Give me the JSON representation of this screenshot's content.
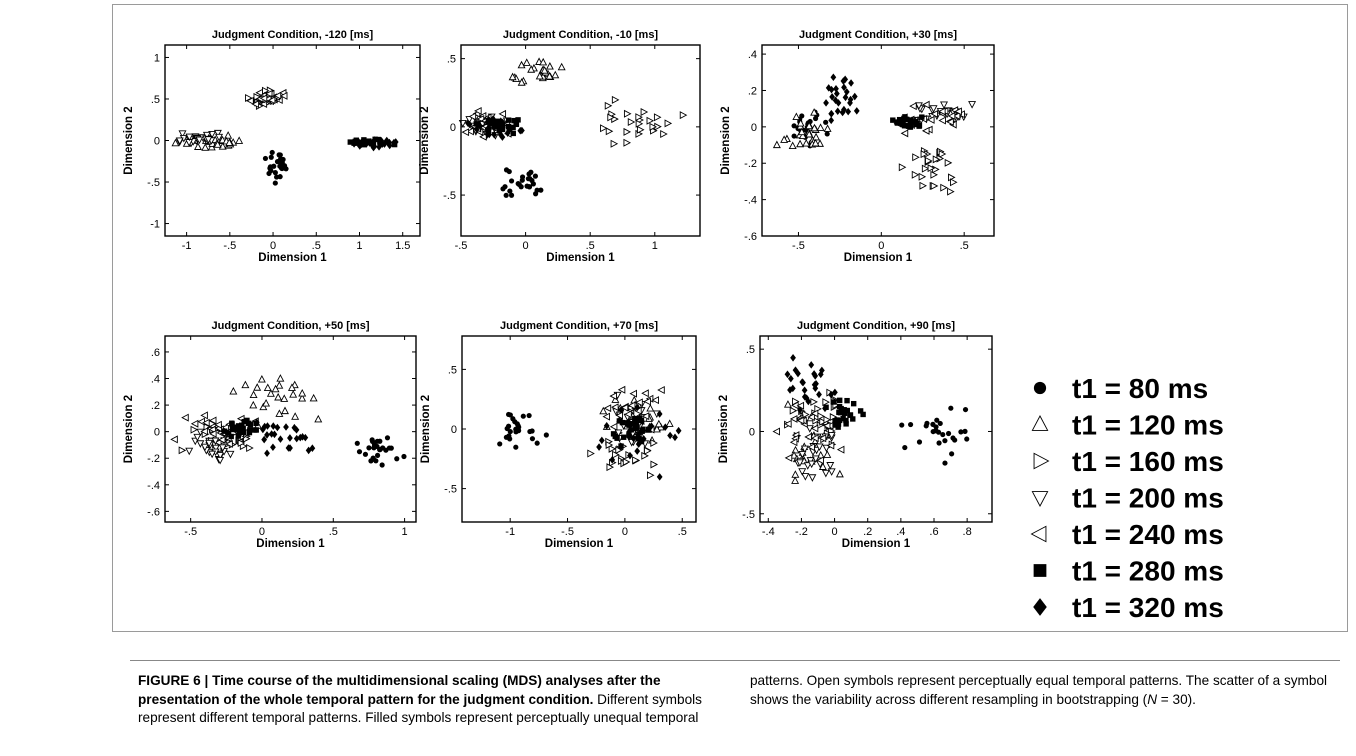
{
  "figure_label": "FIGURE 6",
  "caption": {
    "label": "FIGURE 6",
    "separator": " | ",
    "title": "Time course of the multidimensional scaling (MDS) analyses after the presentation of the whole temporal pattern for the judgment condition.",
    "body_1": " Different symbols represent different temporal patterns. Filled symbols represent perceptually unequal temporal patterns. Open symbols represent perceptually equal temporal patterns. The scatter of a symbol shows the variability across different resampling in bootstrapping (",
    "n_label": "N",
    "body_2": " = 30)."
  },
  "legend": {
    "entries": [
      {
        "marker": "filled-circle",
        "label": "t1 = 80 ms"
      },
      {
        "marker": "open-triangle-up",
        "label": "t1 = 120 ms"
      },
      {
        "marker": "open-triangle-right",
        "label": "t1 = 160 ms"
      },
      {
        "marker": "open-triangle-down",
        "label": "t1 = 200 ms"
      },
      {
        "marker": "open-triangle-left",
        "label": "t1 = 240 ms"
      },
      {
        "marker": "filled-square",
        "label": "t1 = 280 ms"
      },
      {
        "marker": "filled-diamond",
        "label": "t1 = 320 ms"
      }
    ]
  },
  "chart_data": [
    {
      "type": "scatter",
      "title": "Judgment Condition, -120 [ms]",
      "xlabel": "Dimension 1",
      "ylabel": "Dimension 2",
      "xlim": [
        -1.25,
        1.7
      ],
      "ylim": [
        -1.15,
        1.15
      ],
      "xticks": [
        -1,
        -0.5,
        0,
        0.5,
        1,
        1.5
      ],
      "yticks": [
        -1,
        -0.5,
        0,
        0.5,
        1
      ],
      "series": [
        {
          "marker": "filled-circle",
          "center": [
            0.05,
            -0.3
          ],
          "spread": [
            0.12,
            0.13
          ]
        },
        {
          "marker": "open-triangle-up",
          "center": [
            -0.72,
            -0.02
          ],
          "spread": [
            0.22,
            0.05
          ]
        },
        {
          "marker": "open-triangle-right",
          "center": [
            -0.1,
            0.5
          ],
          "spread": [
            0.1,
            0.06
          ]
        },
        {
          "marker": "open-triangle-down",
          "center": [
            -0.85,
            0.02
          ],
          "spread": [
            0.2,
            0.05
          ]
        },
        {
          "marker": "open-triangle-left",
          "center": [
            -0.05,
            0.5
          ],
          "spread": [
            0.15,
            0.06
          ]
        },
        {
          "marker": "filled-square",
          "center": [
            1.1,
            -0.02
          ],
          "spread": [
            0.15,
            0.03
          ]
        },
        {
          "marker": "filled-diamond",
          "center": [
            1.2,
            -0.03
          ],
          "spread": [
            0.22,
            0.03
          ]
        }
      ]
    },
    {
      "type": "scatter",
      "title": "Judgment Condition, -10 [ms]",
      "xlabel": "Dimension 1",
      "ylabel": "Dimension 2",
      "xlim": [
        -0.5,
        1.35
      ],
      "ylim": [
        -0.8,
        0.6
      ],
      "xticks": [
        -0.5,
        0,
        0.5,
        1
      ],
      "yticks": [
        -0.5,
        0,
        0.5
      ],
      "series": [
        {
          "marker": "filled-circle",
          "center": [
            0.0,
            -0.42
          ],
          "spread": [
            0.15,
            0.07
          ]
        },
        {
          "marker": "open-triangle-up",
          "center": [
            0.05,
            0.4
          ],
          "spread": [
            0.15,
            0.06
          ]
        },
        {
          "marker": "open-triangle-right",
          "center": [
            0.85,
            0.02
          ],
          "spread": [
            0.2,
            0.12
          ]
        },
        {
          "marker": "open-triangle-down",
          "center": [
            -0.3,
            0.0
          ],
          "spread": [
            0.12,
            0.06
          ]
        },
        {
          "marker": "open-triangle-left",
          "center": [
            -0.3,
            0.02
          ],
          "spread": [
            0.12,
            0.06
          ]
        },
        {
          "marker": "filled-square",
          "center": [
            -0.2,
            0.01
          ],
          "spread": [
            0.12,
            0.04
          ]
        },
        {
          "marker": "filled-diamond",
          "center": [
            -0.25,
            0.0
          ],
          "spread": [
            0.15,
            0.05
          ]
        }
      ]
    },
    {
      "type": "scatter",
      "title": "Judgment Condition, +30 [ms]",
      "xlabel": "Dimension 1",
      "ylabel": "Dimension 2",
      "xlim": [
        -0.72,
        0.68
      ],
      "ylim": [
        -0.6,
        0.45
      ],
      "xticks": [
        -0.5,
        0,
        0.5
      ],
      "yticks": [
        -0.6,
        -0.4,
        -0.2,
        0,
        0.2,
        0.4
      ],
      "series": [
        {
          "marker": "filled-circle",
          "center": [
            -0.45,
            0.0
          ],
          "spread": [
            0.08,
            0.07
          ]
        },
        {
          "marker": "open-triangle-up",
          "center": [
            -0.45,
            -0.05
          ],
          "spread": [
            0.1,
            0.08
          ]
        },
        {
          "marker": "open-triangle-right",
          "center": [
            0.3,
            -0.25
          ],
          "spread": [
            0.12,
            0.08
          ]
        },
        {
          "marker": "open-triangle-down",
          "center": [
            0.35,
            0.08
          ],
          "spread": [
            0.15,
            0.04
          ]
        },
        {
          "marker": "open-triangle-left",
          "center": [
            0.3,
            0.05
          ],
          "spread": [
            0.15,
            0.05
          ]
        },
        {
          "marker": "filled-square",
          "center": [
            0.15,
            0.03
          ],
          "spread": [
            0.06,
            0.03
          ]
        },
        {
          "marker": "filled-diamond",
          "center": [
            -0.25,
            0.15
          ],
          "spread": [
            0.07,
            0.1
          ]
        }
      ]
    },
    {
      "type": "scatter",
      "title": "Judgment Condition, +50 [ms]",
      "xlabel": "Dimension 1",
      "ylabel": "Dimension 2",
      "xlim": [
        -0.68,
        1.08
      ],
      "ylim": [
        -0.68,
        0.72
      ],
      "xticks": [
        -0.5,
        0,
        0.5,
        1
      ],
      "yticks": [
        -0.6,
        -0.4,
        -0.2,
        0,
        0.2,
        0.4,
        0.6
      ],
      "series": [
        {
          "marker": "filled-circle",
          "center": [
            0.8,
            -0.15
          ],
          "spread": [
            0.12,
            0.07
          ]
        },
        {
          "marker": "open-triangle-up",
          "center": [
            0.1,
            0.25
          ],
          "spread": [
            0.25,
            0.12
          ]
        },
        {
          "marker": "open-triangle-right",
          "center": [
            -0.3,
            -0.05
          ],
          "spread": [
            0.15,
            0.08
          ]
        },
        {
          "marker": "open-triangle-down",
          "center": [
            -0.35,
            -0.1
          ],
          "spread": [
            0.15,
            0.08
          ]
        },
        {
          "marker": "open-triangle-left",
          "center": [
            -0.3,
            0.02
          ],
          "spread": [
            0.18,
            0.08
          ]
        },
        {
          "marker": "filled-square",
          "center": [
            -0.15,
            0.02
          ],
          "spread": [
            0.08,
            0.04
          ]
        },
        {
          "marker": "filled-diamond",
          "center": [
            0.1,
            0.0
          ],
          "spread": [
            0.2,
            0.1
          ]
        }
      ]
    },
    {
      "type": "scatter",
      "title": "Judgment Condition, +70 [ms]",
      "xlabel": "Dimension 1",
      "ylabel": "Dimension 2",
      "xlim": [
        -1.42,
        0.62
      ],
      "ylim": [
        -0.78,
        0.78
      ],
      "xticks": [
        -1,
        -0.5,
        0,
        0.5
      ],
      "yticks": [
        -0.5,
        0,
        0.5
      ],
      "series": [
        {
          "marker": "filled-circle",
          "center": [
            -0.95,
            -0.02
          ],
          "spread": [
            0.15,
            0.12
          ]
        },
        {
          "marker": "open-triangle-up",
          "center": [
            0.1,
            0.1
          ],
          "spread": [
            0.2,
            0.15
          ]
        },
        {
          "marker": "open-triangle-right",
          "center": [
            0.05,
            -0.2
          ],
          "spread": [
            0.2,
            0.15
          ]
        },
        {
          "marker": "open-triangle-down",
          "center": [
            0.05,
            0.0
          ],
          "spread": [
            0.15,
            0.15
          ]
        },
        {
          "marker": "open-triangle-left",
          "center": [
            0.1,
            0.2
          ],
          "spread": [
            0.18,
            0.12
          ]
        },
        {
          "marker": "filled-square",
          "center": [
            0.05,
            0.0
          ],
          "spread": [
            0.1,
            0.08
          ]
        },
        {
          "marker": "filled-diamond",
          "center": [
            0.15,
            -0.1
          ],
          "spread": [
            0.2,
            0.2
          ]
        }
      ]
    },
    {
      "type": "scatter",
      "title": "Judgment Condition, +90 [ms]",
      "xlabel": "Dimension 1",
      "ylabel": "Dimension 2",
      "xlim": [
        -0.45,
        0.95
      ],
      "ylim": [
        -0.55,
        0.58
      ],
      "xticks": [
        -0.4,
        -0.2,
        0,
        0.2,
        0.4,
        0.6,
        0.8
      ],
      "yticks": [
        -0.5,
        0,
        0.5
      ],
      "series": [
        {
          "marker": "filled-circle",
          "center": [
            0.62,
            0.0
          ],
          "spread": [
            0.12,
            0.12
          ]
        },
        {
          "marker": "open-triangle-up",
          "center": [
            -0.15,
            -0.1
          ],
          "spread": [
            0.1,
            0.15
          ]
        },
        {
          "marker": "open-triangle-right",
          "center": [
            -0.1,
            0.1
          ],
          "spread": [
            0.12,
            0.12
          ]
        },
        {
          "marker": "open-triangle-down",
          "center": [
            -0.1,
            -0.15
          ],
          "spread": [
            0.1,
            0.12
          ]
        },
        {
          "marker": "open-triangle-left",
          "center": [
            -0.15,
            0.0
          ],
          "spread": [
            0.12,
            0.15
          ]
        },
        {
          "marker": "filled-square",
          "center": [
            0.05,
            0.1
          ],
          "spread": [
            0.08,
            0.08
          ]
        },
        {
          "marker": "filled-diamond",
          "center": [
            -0.15,
            0.3
          ],
          "spread": [
            0.1,
            0.12
          ]
        }
      ]
    }
  ]
}
